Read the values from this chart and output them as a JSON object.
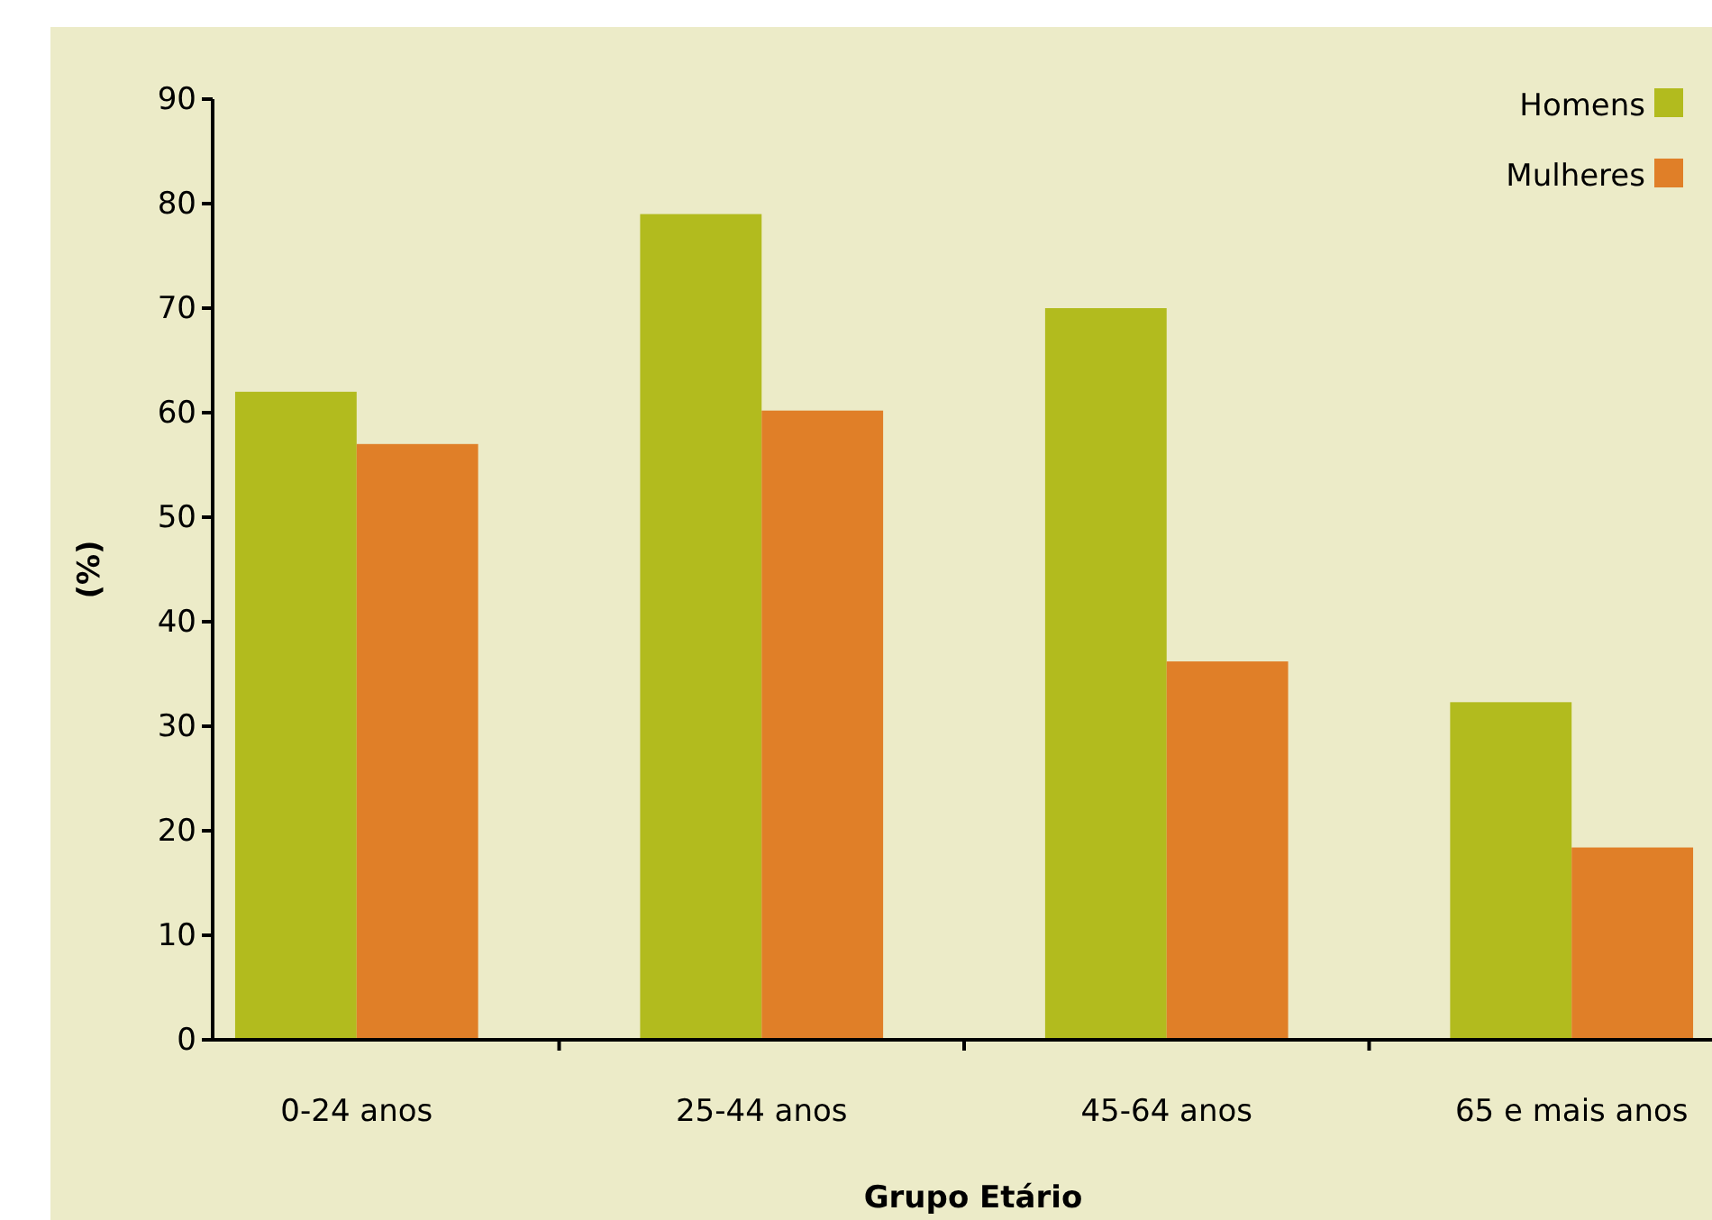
{
  "chart_data": {
    "type": "bar",
    "xlabel": "Grupo Etário",
    "ylabel": "(%)",
    "categories": [
      "0-24 anos",
      "25-44 anos",
      "45-64 anos",
      "65 e mais anos"
    ],
    "series": [
      {
        "name": "Homens",
        "color": "#b2bb1e",
        "values": [
          62,
          79,
          70,
          32.3
        ]
      },
      {
        "name": "Mulheres",
        "color": "#e07f28",
        "values": [
          57,
          60.2,
          36.2,
          18.4
        ]
      }
    ],
    "ylim": [
      0,
      90
    ],
    "yticks": [
      0,
      10,
      20,
      30,
      40,
      50,
      60,
      70,
      80,
      90
    ],
    "grid": false,
    "legend": "top right"
  }
}
